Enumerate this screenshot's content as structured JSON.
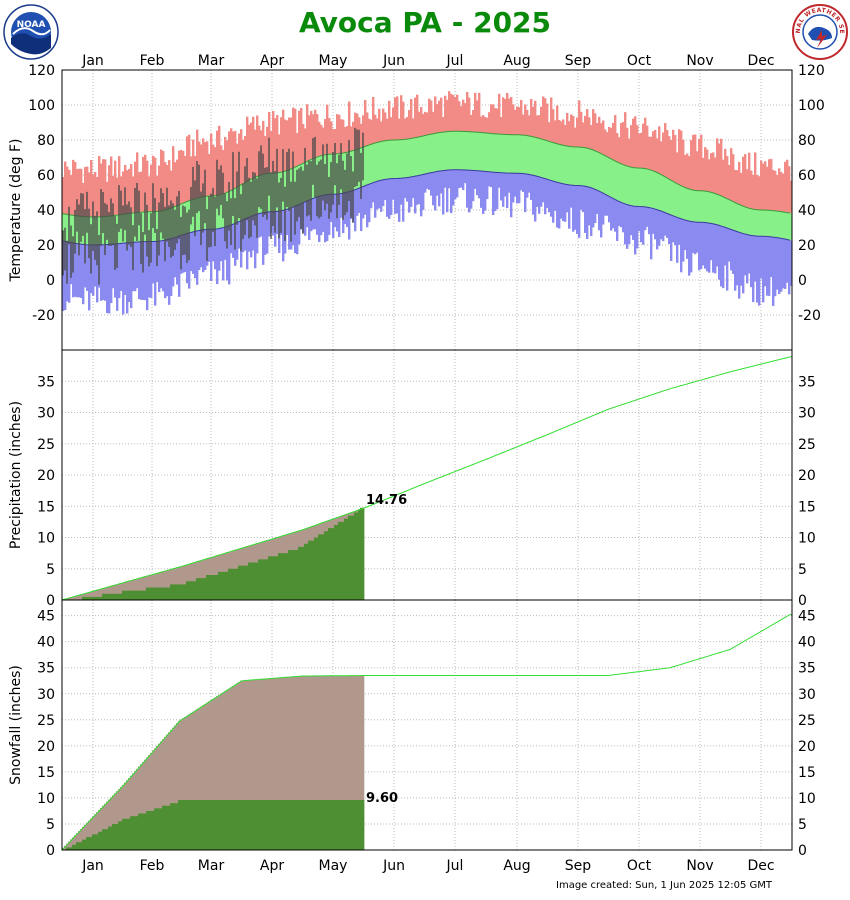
{
  "title": "Avoca PA - 2025",
  "footer": "Image created: Sun, 1 Jun 2025 12:05 GMT",
  "logos": {
    "left": "NOAA",
    "right": "NATIONAL WEATHER SERVICE"
  },
  "colors": {
    "title": "#0a8a0a",
    "record_high_band": "#f28b86",
    "normal_band": "#88f088",
    "record_low_band": "#8a8af0",
    "observed_temp": "#4a4a4a",
    "normal_line": "#33dd33",
    "observed_fill": "#4f8f33",
    "normal_fill": "#b0998c"
  },
  "chart_data": [
    {
      "type": "bar",
      "panel": "temperature",
      "ylabel": "Temperature (deg F)",
      "ylim": [
        -40,
        120
      ],
      "yticks": [
        -20,
        0,
        20,
        40,
        60,
        80,
        100,
        120
      ],
      "months": [
        "Jan",
        "Feb",
        "Mar",
        "Apr",
        "May",
        "Jun",
        "Jul",
        "Aug",
        "Sep",
        "Oct",
        "Nov",
        "Dec"
      ],
      "grid": true,
      "normal_high_by_month": [
        36,
        39,
        48,
        61,
        72,
        80,
        85,
        83,
        76,
        64,
        51,
        40
      ],
      "normal_low_by_month": [
        20,
        22,
        29,
        39,
        49,
        58,
        63,
        61,
        54,
        42,
        33,
        25
      ],
      "record_high_by_month": [
        63,
        66,
        80,
        90,
        94,
        98,
        101,
        99,
        95,
        87,
        76,
        65
      ],
      "record_low_by_month": [
        -12,
        -10,
        3,
        18,
        30,
        39,
        47,
        43,
        33,
        22,
        8,
        -6
      ],
      "observed_through": "May 31",
      "observed_high_by_month": [
        33,
        38,
        50,
        63,
        70
      ],
      "observed_low_by_month": [
        16,
        20,
        29,
        38,
        48
      ]
    },
    {
      "type": "area",
      "panel": "precipitation",
      "ylabel": "Precipitation (inches)",
      "ylim": [
        0,
        40
      ],
      "yticks": [
        0,
        5,
        10,
        15,
        20,
        25,
        30,
        35
      ],
      "grid": true,
      "series": [
        {
          "name": "",
          "role": "normal",
          "x": [
            "Jan 1",
            "Feb 1",
            "Mar 1",
            "Apr 1",
            "May 1",
            "Jun 1",
            "Jul 1",
            "Aug 1",
            "Sep 1",
            "Oct 1",
            "Nov 1",
            "Dec 1",
            "Dec 31"
          ],
          "values": [
            0,
            2.8,
            5.3,
            8.3,
            11.2,
            14.7,
            18.6,
            22.5,
            26.5,
            30.5,
            33.8,
            36.5,
            38.9
          ]
        },
        {
          "name": "",
          "role": "observed",
          "x": [
            "Jan 1",
            "Feb 1",
            "Mar 1",
            "Apr 1",
            "May 1",
            "May 31"
          ],
          "values": [
            0,
            1.5,
            2.7,
            5.6,
            8.7,
            14.76
          ]
        }
      ],
      "annotation": "14.76"
    },
    {
      "type": "area",
      "panel": "snowfall",
      "ylabel": "Snowfall (inches)",
      "ylim": [
        0,
        48
      ],
      "yticks": [
        0,
        5,
        10,
        15,
        20,
        25,
        30,
        35,
        40,
        45
      ],
      "grid": true,
      "series": [
        {
          "name": "",
          "role": "normal",
          "x": [
            "Jan 1",
            "Feb 1",
            "Mar 1",
            "Apr 1",
            "May 1",
            "Jun 1",
            "Jul 1",
            "Aug 1",
            "Sep 1",
            "Oct 1",
            "Nov 1",
            "Dec 1",
            "Dec 31"
          ],
          "values": [
            0,
            12.5,
            24.8,
            32.5,
            33.4,
            33.5,
            33.5,
            33.5,
            33.5,
            33.5,
            35.0,
            38.5,
            45.2
          ]
        },
        {
          "name": "",
          "role": "observed",
          "x": [
            "Jan 1",
            "Feb 1",
            "Mar 1",
            "Apr 1",
            "May 1",
            "May 31"
          ],
          "values": [
            0,
            6.0,
            9.6,
            9.6,
            9.6,
            9.6
          ]
        }
      ],
      "annotation": "9.60"
    }
  ]
}
